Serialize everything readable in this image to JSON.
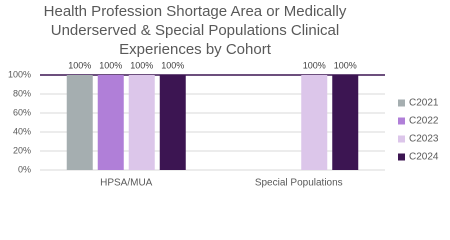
{
  "chart_data": {
    "type": "bar",
    "title_lines": [
      "Health Profession Shortage Area or Medically",
      "Underserved & Special Populations Clinical",
      "Experiences by Cohort"
    ],
    "categories": [
      "HPSA/MUA",
      "Special Populations"
    ],
    "series": [
      {
        "name": "C2021",
        "color": "#a5aeb0",
        "values": [
          100,
          null
        ],
        "value_labels": [
          "100%",
          null
        ]
      },
      {
        "name": "C2022",
        "color": "#b07fd8",
        "values": [
          100,
          null
        ],
        "value_labels": [
          "100%",
          null
        ]
      },
      {
        "name": "C2023",
        "color": "#dcc6ea",
        "values": [
          100,
          100
        ],
        "value_labels": [
          "100%",
          "100%"
        ]
      },
      {
        "name": "C2024",
        "color": "#3c1552",
        "values": [
          100,
          100
        ],
        "value_labels": [
          "100%",
          "100%"
        ]
      }
    ],
    "ylim": [
      0,
      100
    ],
    "yticks": [
      {
        "value": 0,
        "label": "0%"
      },
      {
        "value": 20,
        "label": "20%"
      },
      {
        "value": 40,
        "label": "40%"
      },
      {
        "value": 60,
        "label": "60%"
      },
      {
        "value": 80,
        "label": "80%"
      },
      {
        "value": 100,
        "label": "100%"
      }
    ],
    "grid": true,
    "legend": "right"
  }
}
